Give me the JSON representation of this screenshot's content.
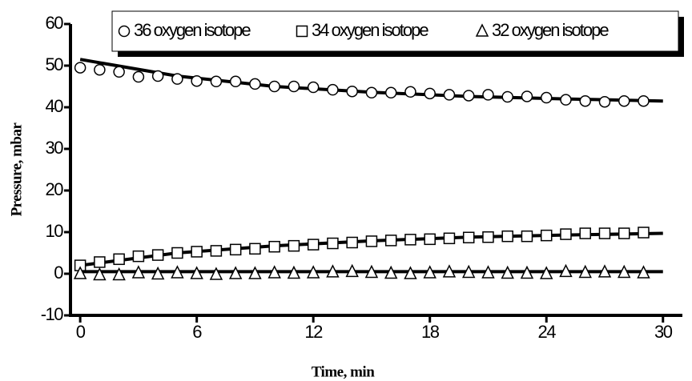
{
  "chart_data": {
    "type": "scatter",
    "xlabel": "Time, min",
    "ylabel": "Pressure, mbar",
    "xlim": [
      -0.5,
      31
    ],
    "ylim": [
      -10,
      60
    ],
    "xticks": [
      0,
      6,
      12,
      18,
      24,
      30
    ],
    "yticks": [
      -10,
      0,
      10,
      20,
      30,
      40,
      50,
      60
    ],
    "x": [
      0,
      1,
      2,
      3,
      4,
      5,
      6,
      7,
      8,
      9,
      10,
      11,
      12,
      13,
      14,
      15,
      16,
      17,
      18,
      19,
      20,
      21,
      22,
      23,
      24,
      25,
      26,
      27,
      28,
      29
    ],
    "series": [
      {
        "name": "36 oxygen isotope",
        "marker": "circle",
        "color": "#000000",
        "values": [
          49.5,
          49,
          48.5,
          47.3,
          47.5,
          46.8,
          46.3,
          46.2,
          46.2,
          45.6,
          45,
          45,
          44.8,
          44.2,
          43.8,
          43.5,
          43.5,
          43.7,
          43.3,
          43,
          42.8,
          43,
          42.5,
          42.6,
          42.3,
          41.8,
          41.5,
          41.3,
          41.5,
          41.5
        ],
        "fit": {
          "x": [
            0,
            5,
            10,
            15,
            20,
            25,
            30
          ],
          "values": [
            51.5,
            47.5,
            45,
            43.6,
            42.6,
            42,
            41.5
          ]
        }
      },
      {
        "name": "34 oxygen isotope",
        "marker": "square",
        "color": "#000000",
        "values": [
          2,
          2.8,
          3.5,
          4.2,
          4.5,
          5,
          5.3,
          5.5,
          5.8,
          6,
          6.5,
          6.7,
          7,
          7.3,
          7.5,
          7.8,
          8,
          8.2,
          8.3,
          8.5,
          8.7,
          8.8,
          9,
          9,
          9.2,
          9.5,
          9.7,
          9.7,
          9.7,
          9.9
        ],
        "fit": {
          "x": [
            0,
            5,
            10,
            15,
            20,
            25,
            30
          ],
          "values": [
            2,
            5,
            6.7,
            7.9,
            8.8,
            9.3,
            9.7
          ]
        }
      },
      {
        "name": "32 oxygen isotope",
        "marker": "triangle",
        "color": "#000000",
        "values": [
          0,
          -0.3,
          -0.3,
          0.2,
          -0.1,
          0.2,
          0,
          -0.2,
          0,
          0,
          0.2,
          0.1,
          0.2,
          0.4,
          0.5,
          0.3,
          0.1,
          0,
          0.2,
          0.4,
          0.3,
          0.2,
          0.1,
          0.1,
          0,
          0.5,
          0.3,
          0.4,
          0.3,
          0.2
        ],
        "fit": {
          "x": [
            0,
            5,
            10,
            15,
            20,
            25,
            30
          ],
          "values": [
            0.5,
            0.5,
            0.5,
            0.5,
            0.5,
            0.5,
            0.5
          ]
        }
      }
    ]
  }
}
